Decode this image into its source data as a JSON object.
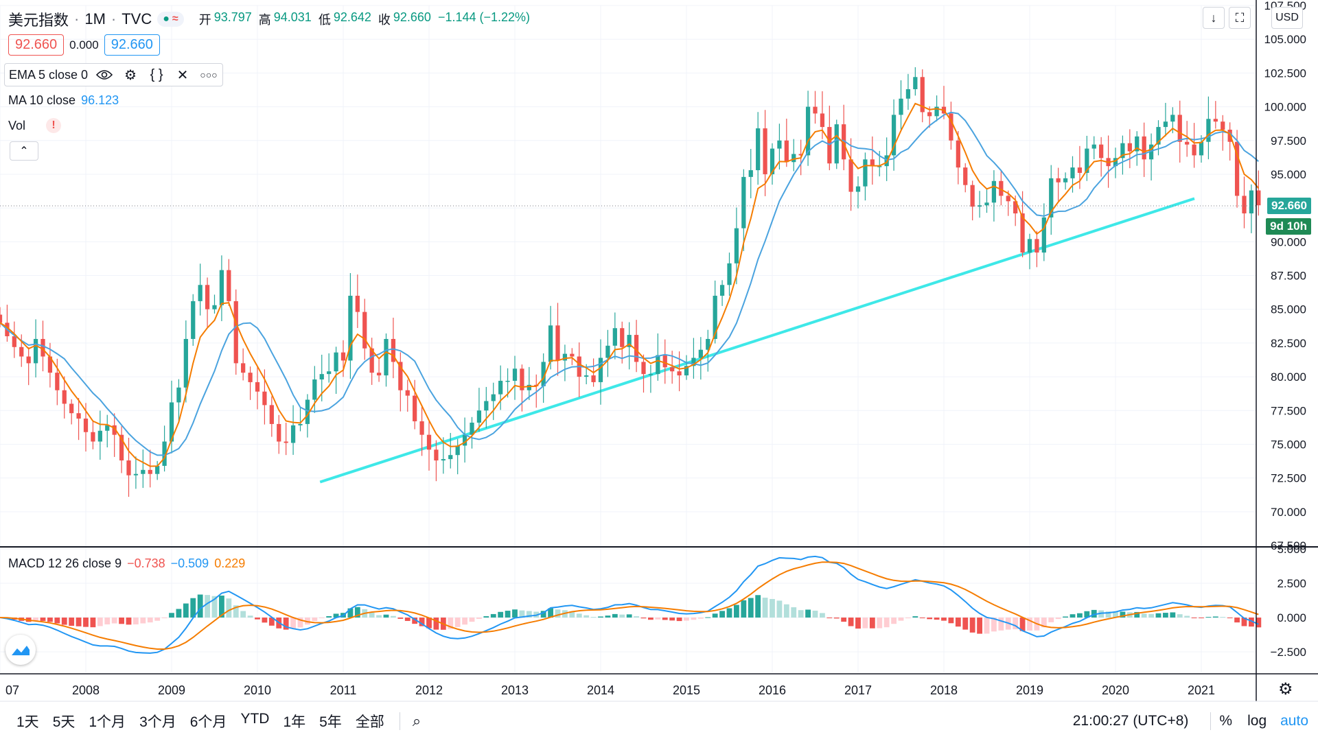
{
  "header": {
    "symbol": "美元指数",
    "separator": "·",
    "interval": "1M",
    "exchange": "TVC",
    "open_label": "开",
    "open_value": "93.797",
    "high_label": "高",
    "high_value": "94.031",
    "low_label": "低",
    "low_value": "92.642",
    "close_label": "收",
    "close_value": "92.660",
    "change": "−1.144 (−1.22%)",
    "bid": "92.660",
    "spread": "0.000",
    "ask": "92.660",
    "currency": "USD"
  },
  "studies": {
    "ema": "EMA 5 close 0",
    "ma_label": "MA 10 close",
    "ma_value": "96.123",
    "vol_label": "Vol",
    "vol_alert": "!",
    "macd_label": "MACD 12 26 close 9",
    "macd_value": "−0.738",
    "signal_value": "−0.509",
    "hist_value": "0.229"
  },
  "last_price": {
    "value": "92.660",
    "countdown": "9d 10h"
  },
  "bottom_bar": {
    "timeframes": [
      "1天",
      "5天",
      "1个月",
      "3个月",
      "6个月",
      "YTD",
      "1年",
      "5年",
      "全部"
    ],
    "clock": "21:00:27 (UTC+8)",
    "percent": "%",
    "log": "log",
    "auto": "auto"
  },
  "colors": {
    "up": "#26a69a",
    "down": "#ef5350",
    "ema": "#f57c00",
    "ma": "#4aa3df",
    "trendline": "#3ee8e8",
    "last_price_bg": "#26a69a"
  },
  "chart_data": [
    {
      "type": "candlestick",
      "title": "美元指数 · 1M · TVC",
      "x_ticks": [
        "07",
        "2008",
        "2009",
        "2010",
        "2011",
        "2012",
        "2013",
        "2014",
        "2015",
        "2016",
        "2017",
        "2018",
        "2019",
        "2020",
        "2021"
      ],
      "y_ticks": [
        "67.500",
        "70.000",
        "72.500",
        "75.000",
        "77.500",
        "80.000",
        "82.500",
        "85.000",
        "87.500",
        "90.000",
        "92.500",
        "95.000",
        "97.500",
        "100.000",
        "102.500",
        "105.000",
        "107.500"
      ],
      "ylim": [
        67.5,
        107.5
      ],
      "xlim": [
        2007.0,
        2021.64
      ],
      "start": 2007.0,
      "closes": [
        84.0,
        83.0,
        82.2,
        81.5,
        81.0,
        82.8,
        81.5,
        80.3,
        79.0,
        78.0,
        77.3,
        76.9,
        75.9,
        75.2,
        76.0,
        76.4,
        75.7,
        73.8,
        72.7,
        72.8,
        73.1,
        72.8,
        73.4,
        75.2,
        78.1,
        79.2,
        82.8,
        85.6,
        86.8,
        85.0,
        85.3,
        87.9,
        85.6,
        81.0,
        80.3,
        79.6,
        78.9,
        77.9,
        76.5,
        75.2,
        75.1,
        76.4,
        76.5,
        78.3,
        79.8,
        80.2,
        80.4,
        81.8,
        81.2,
        86.0,
        84.8,
        82.1,
        80.3,
        80.1,
        82.8,
        81.1,
        79.0,
        78.6,
        76.7,
        75.7,
        74.6,
        73.8,
        73.9,
        74.2,
        74.9,
        75.7,
        76.6,
        77.5,
        78.2,
        78.7,
        79.7,
        79.7,
        80.6,
        79.0,
        79.4,
        79.3,
        81.1,
        83.8,
        81.2,
        81.7,
        81.5,
        80.0,
        80.1,
        79.6,
        81.4,
        82.3,
        83.6,
        82.2,
        83.1,
        81.1,
        80.2,
        80.2,
        81.6,
        80.7,
        80.4,
        80.1,
        80.8,
        81.4,
        82.0,
        82.8,
        86.0,
        86.8,
        88.4,
        91.0,
        94.8,
        95.3,
        98.4,
        95.0,
        96.9,
        97.5,
        95.9,
        96.5,
        96.4,
        100.0,
        99.5,
        98.5,
        95.8,
        98.7,
        96.1,
        93.7,
        94.1,
        96.1,
        95.6,
        95.6,
        96.4,
        99.4,
        100.6,
        101.3,
        102.2,
        99.6,
        99.3,
        100.0,
        99.5,
        97.5,
        95.5,
        94.2,
        92.6,
        92.7,
        92.9,
        94.5,
        93.4,
        93.0,
        92.1,
        89.2,
        90.2,
        89.2,
        91.8,
        94.7,
        94.4,
        94.7,
        95.5,
        95.1,
        96.9,
        97.2,
        96.2,
        95.6,
        96.2,
        97.3,
        96.7,
        97.8,
        96.1,
        97.2,
        98.5,
        98.9,
        99.4,
        97.4,
        97.2,
        96.4,
        97.4,
        99.1,
        98.9,
        98.3,
        97.4,
        93.4,
        92.1,
        93.8,
        92.7
      ]
    },
    {
      "type": "line",
      "title": "MACD 12 26 close 9",
      "y_ticks": [
        "−2.500",
        "0.000",
        "2.500",
        "5.000"
      ],
      "ylim": [
        -4.0,
        5.0
      ]
    }
  ]
}
